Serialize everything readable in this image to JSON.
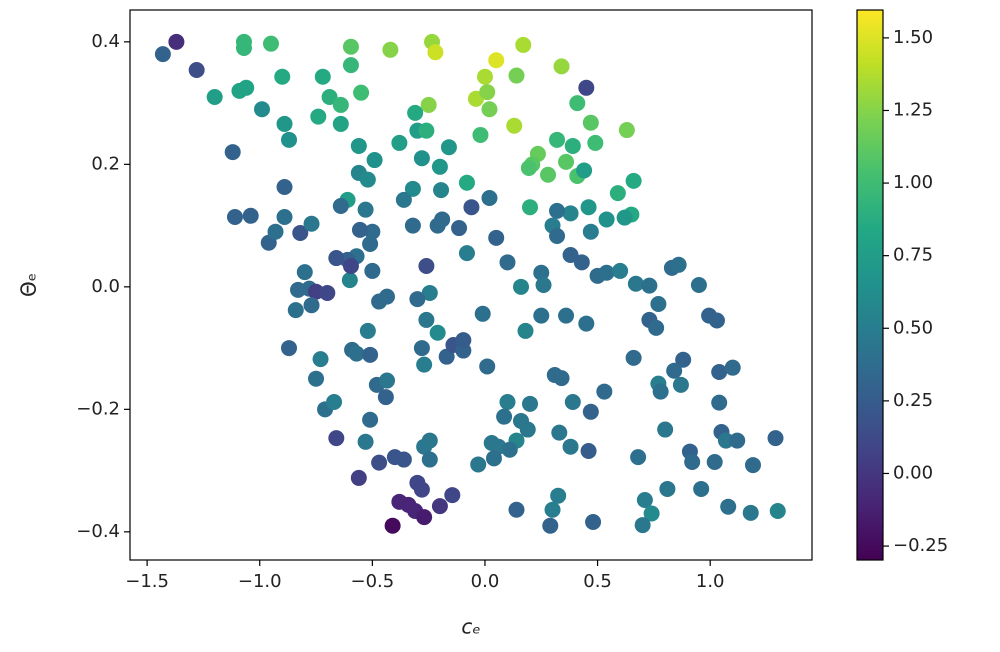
{
  "chart_data": {
    "type": "scatter",
    "xlabel": "cₑ",
    "ylabel": "Θₑ",
    "xlim": [
      -1.576,
      1.452
    ],
    "ylim": [
      -0.446,
      0.452
    ],
    "xticks": [
      {
        "value": -1.5,
        "label": "−1.5"
      },
      {
        "value": -1.0,
        "label": "−1.0"
      },
      {
        "value": -0.5,
        "label": "−0.5"
      },
      {
        "value": 0.0,
        "label": "0.0"
      },
      0.5,
      {
        "value": 1.0,
        "label": "1.0"
      }
    ],
    "yticks": [
      {
        "value": -0.4,
        "label": "−0.4"
      },
      {
        "value": -0.2,
        "label": "−0.2"
      },
      {
        "value": 0.0,
        "label": "0.0"
      },
      0.2,
      0.4
    ],
    "colormap": "viridis",
    "clim": [
      -0.298,
      1.596
    ],
    "cticks": [
      {
        "value": -0.25,
        "label": "−0.25"
      },
      {
        "value": 0.0,
        "label": "0.00"
      },
      0.25,
      {
        "value": 0.5,
        "label": "0.50"
      },
      0.75,
      {
        "value": 1.0,
        "label": "1.00"
      },
      1.25,
      {
        "value": 1.5,
        "label": "1.50"
      }
    ],
    "x": [
      -1.43,
      -1.37,
      -1.28,
      -1.2,
      -1.09,
      -1.06,
      -1.07,
      -1.07,
      -0.95,
      -0.99,
      -0.9,
      -0.89,
      -0.87,
      -1.12,
      -0.72,
      -0.69,
      -0.64,
      -0.74,
      -0.64,
      -0.595,
      -0.595,
      -0.55,
      -0.42,
      -0.235,
      -0.22,
      -0.25,
      -0.31,
      -0.3,
      -0.26,
      -0.38,
      -0.28,
      -0.16,
      -0.2,
      -0.56,
      -0.49,
      -0.56,
      -0.52,
      -0.32,
      -0.195,
      0.0,
      0.05,
      0.17,
      -0.04,
      0.01,
      0.02,
      0.14,
      0.13,
      0.34,
      0.45,
      0.41,
      0.47,
      0.63,
      -0.02,
      0.235,
      0.21,
      0.195,
      0.32,
      0.39,
      0.49,
      0.36,
      0.28,
      0.41,
      0.44,
      0.59,
      0.66,
      0.65,
      0.62,
      0.54,
      0.46,
      0.47,
      0.38,
      0.32,
      0.2,
      0.3,
      0.32,
      -0.08,
      0.02,
      -0.06,
      -0.115,
      -0.19,
      -0.32,
      -0.36,
      -0.61,
      -0.53,
      -0.64,
      -0.5,
      -0.555,
      -0.51,
      -0.57,
      -0.61,
      -0.66,
      -0.5,
      -0.6,
      -0.595,
      -1.11,
      -1.04,
      -0.96,
      -0.93,
      -0.89,
      -0.89,
      -0.82,
      -0.77,
      -0.8,
      -0.83,
      -0.78,
      -0.75,
      -0.7,
      -0.84,
      -0.77,
      -0.87,
      -0.73,
      -0.75,
      -0.71,
      -0.67,
      -0.66,
      -0.59,
      -0.57,
      -0.52,
      -0.51,
      -0.47,
      -0.435,
      -0.48,
      -0.435,
      -0.44,
      -0.51,
      -0.53,
      -0.56,
      -0.47,
      -0.4,
      -0.36,
      -0.41,
      -0.38,
      -0.34,
      -0.31,
      -0.27,
      -0.28,
      -0.3,
      -0.2,
      -0.145,
      -0.245,
      -0.27,
      -0.245,
      -0.28,
      -0.27,
      -0.26,
      -0.245,
      -0.26,
      -0.21,
      -0.3,
      -0.17,
      -0.14,
      -0.096,
      -0.096,
      -0.21,
      -0.08,
      0.05,
      0.1,
      0.16,
      0.25,
      0.26,
      -0.01,
      0.01,
      0.18,
      0.25,
      0.36,
      0.45,
      0.38,
      0.43,
      0.5,
      0.54,
      0.6,
      0.67,
      0.73,
      0.83,
      0.86,
      0.95,
      0.77,
      0.73,
      0.76,
      0.995,
      1.03,
      0.66,
      0.88,
      0.84,
      1.04,
      1.1,
      0.77,
      0.78,
      0.87,
      1.04,
      0.8,
      0.91,
      0.92,
      1.02,
      1.05,
      1.07,
      1.12,
      1.19,
      1.29,
      1.3,
      1.18,
      1.08,
      0.96,
      0.81,
      0.71,
      0.74,
      0.7,
      0.68,
      0.48,
      0.46,
      0.3,
      0.325,
      0.29,
      0.14,
      0.33,
      0.38,
      0.53,
      0.47,
      0.39,
      0.31,
      0.34,
      0.2,
      0.1,
      0.085,
      0.16,
      0.19,
      0.14,
      0.06,
      0.03,
      0.04,
      0.11,
      -0.03
    ],
    "y": [
      0.38,
      0.4,
      0.354,
      0.31,
      0.32,
      0.325,
      0.4,
      0.39,
      0.397,
      0.29,
      0.343,
      0.266,
      0.24,
      0.22,
      0.343,
      0.31,
      0.297,
      0.278,
      0.266,
      0.392,
      0.362,
      0.317,
      0.387,
      0.4,
      0.383,
      0.297,
      0.284,
      0.255,
      0.255,
      0.235,
      0.21,
      0.228,
      0.196,
      0.23,
      0.207,
      0.186,
      0.175,
      0.16,
      0.158,
      0.343,
      0.37,
      0.395,
      0.307,
      0.318,
      0.29,
      0.345,
      0.263,
      0.36,
      0.325,
      0.3,
      0.268,
      0.256,
      0.248,
      0.217,
      0.2,
      0.194,
      0.24,
      0.23,
      0.235,
      0.204,
      0.183,
      0.181,
      0.19,
      0.153,
      0.173,
      0.118,
      0.113,
      0.11,
      0.13,
      0.09,
      0.12,
      0.124,
      0.13,
      0.1,
      0.083,
      0.17,
      0.145,
      0.13,
      0.096,
      0.11,
      0.1,
      0.142,
      0.142,
      0.126,
      0.132,
      0.09,
      0.093,
      0.07,
      0.05,
      0.044,
      0.047,
      0.026,
      0.011,
      0.034,
      0.114,
      0.116,
      0.072,
      0.09,
      0.114,
      0.163,
      0.088,
      0.103,
      0.024,
      -0.005,
      -0.003,
      -0.008,
      -0.01,
      -0.038,
      -0.03,
      -0.1,
      -0.118,
      -0.15,
      -0.2,
      -0.188,
      -0.247,
      -0.103,
      -0.109,
      -0.072,
      -0.111,
      -0.024,
      -0.016,
      -0.16,
      -0.153,
      -0.18,
      -0.217,
      -0.253,
      -0.312,
      -0.287,
      -0.278,
      -0.282,
      -0.39,
      -0.351,
      -0.356,
      -0.366,
      -0.376,
      -0.331,
      -0.32,
      -0.358,
      -0.34,
      -0.251,
      -0.261,
      -0.282,
      -0.1,
      -0.127,
      -0.054,
      -0.01,
      0.034,
      -0.075,
      -0.02,
      -0.114,
      -0.095,
      -0.104,
      -0.087,
      0.1,
      0.055,
      0.08,
      0.04,
      0.0,
      0.023,
      0.003,
      -0.044,
      -0.13,
      -0.072,
      -0.047,
      -0.047,
      -0.06,
      0.052,
      0.04,
      0.018,
      0.023,
      0.026,
      0.005,
      0.002,
      0.031,
      0.036,
      0.003,
      -0.028,
      -0.054,
      -0.067,
      -0.047,
      -0.055,
      -0.116,
      -0.119,
      -0.137,
      -0.139,
      -0.132,
      -0.158,
      -0.171,
      -0.16,
      -0.189,
      -0.233,
      -0.269,
      -0.286,
      -0.286,
      -0.237,
      -0.251,
      -0.251,
      -0.291,
      -0.247,
      -0.366,
      -0.369,
      -0.359,
      -0.33,
      -0.33,
      -0.348,
      -0.37,
      -0.389,
      -0.278,
      -0.384,
      -0.268,
      -0.364,
      -0.341,
      -0.39,
      -0.364,
      -0.238,
      -0.261,
      -0.171,
      -0.204,
      -0.188,
      -0.144,
      -0.149,
      -0.191,
      -0.188,
      -0.212,
      -0.219,
      -0.233,
      -0.251,
      -0.261,
      -0.255,
      -0.28,
      -0.266,
      -0.29
    ],
    "c": [
      0.3,
      -0.05,
      0.15,
      0.75,
      0.8,
      0.8,
      0.95,
      0.95,
      1.0,
      0.6,
      0.85,
      0.7,
      0.65,
      0.3,
      0.85,
      0.9,
      0.95,
      0.85,
      0.8,
      1.1,
      0.95,
      1.0,
      1.25,
      1.3,
      1.45,
      1.25,
      0.85,
      0.75,
      0.9,
      0.75,
      0.65,
      0.7,
      0.7,
      0.7,
      0.65,
      0.55,
      0.6,
      0.6,
      0.55,
      1.35,
      1.5,
      1.35,
      1.35,
      1.25,
      1.2,
      1.2,
      1.35,
      1.3,
      0.1,
      1.0,
      1.1,
      1.2,
      1.0,
      1.15,
      1.1,
      1.05,
      0.95,
      0.9,
      1.0,
      1.1,
      1.1,
      1.05,
      0.75,
      0.9,
      0.85,
      0.85,
      0.7,
      0.65,
      0.7,
      0.5,
      0.55,
      0.4,
      0.9,
      0.5,
      0.35,
      0.85,
      0.4,
      0.2,
      0.3,
      0.35,
      0.35,
      0.45,
      0.75,
      0.45,
      0.35,
      0.35,
      0.3,
      0.35,
      0.4,
      0.3,
      0.2,
      0.35,
      0.55,
      0.1,
      0.3,
      0.3,
      0.3,
      0.4,
      0.4,
      0.3,
      0.2,
      0.45,
      0.4,
      0.35,
      0.35,
      0.05,
      0.1,
      0.4,
      0.35,
      0.3,
      0.5,
      0.4,
      0.4,
      0.5,
      0.1,
      0.35,
      0.4,
      0.5,
      0.3,
      0.35,
      0.35,
      0.35,
      0.45,
      0.3,
      0.35,
      0.45,
      0.05,
      0.15,
      0.2,
      0.2,
      -0.25,
      -0.1,
      -0.1,
      -0.1,
      -0.15,
      0.1,
      0.1,
      0.0,
      0.1,
      0.45,
      0.45,
      0.4,
      0.35,
      0.5,
      0.45,
      0.5,
      0.15,
      0.6,
      0.35,
      0.3,
      0.2,
      0.3,
      0.25,
      0.35,
      0.5,
      0.3,
      0.35,
      0.55,
      0.4,
      0.45,
      0.4,
      0.35,
      0.55,
      0.4,
      0.4,
      0.4,
      0.3,
      0.3,
      0.35,
      0.4,
      0.5,
      0.45,
      0.4,
      0.35,
      0.4,
      0.4,
      0.4,
      0.3,
      0.35,
      0.3,
      0.3,
      0.35,
      0.3,
      0.35,
      0.3,
      0.35,
      0.5,
      0.4,
      0.45,
      0.35,
      0.45,
      0.3,
      0.35,
      0.35,
      0.3,
      0.45,
      0.35,
      0.35,
      0.3,
      0.55,
      0.45,
      0.4,
      0.4,
      0.45,
      0.5,
      0.6,
      0.45,
      0.4,
      0.3,
      0.25,
      0.5,
      0.5,
      0.3,
      0.3,
      0.45,
      0.45,
      0.35,
      0.3,
      0.45,
      0.35,
      0.35,
      0.45,
      0.5,
      0.4,
      0.45,
      0.45,
      0.55,
      0.45,
      0.45,
      0.4,
      0.4,
      0.45
    ]
  }
}
